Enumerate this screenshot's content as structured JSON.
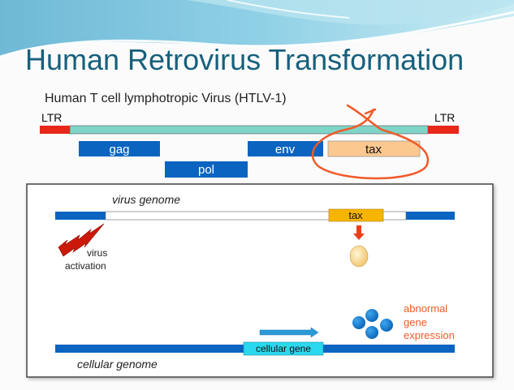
{
  "title": "Human Retrovirus Transformation",
  "subtitle": "Human T cell lymphotropic Virus (HTLV-1)",
  "genome_map": {
    "ltr_left": "LTR",
    "ltr_right": "LTR",
    "genes": {
      "gag": "gag",
      "pol": "pol",
      "env": "env",
      "tax": "tax"
    }
  },
  "mechanism": {
    "virus_genome_label": "virus genome",
    "tax_label": "tax",
    "virus_activation_line1": "virus",
    "virus_activation_line2": "activation",
    "cellular_gene_label": "cellular gene",
    "cellular_genome_label": "cellular genome",
    "abnormal_line1": "abnormal",
    "abnormal_line2": "gene",
    "abnormal_line3": "expression"
  },
  "colors": {
    "title": "#17607c",
    "ltr": "#e8261a",
    "provirus_body": "#7fd4c8",
    "gene_block": "#0a64c0",
    "tax_highlight": "#fbc890",
    "tax_viral": "#f7b500",
    "cellular_gene": "#2ad8ef",
    "annotation": "#f05a28"
  }
}
